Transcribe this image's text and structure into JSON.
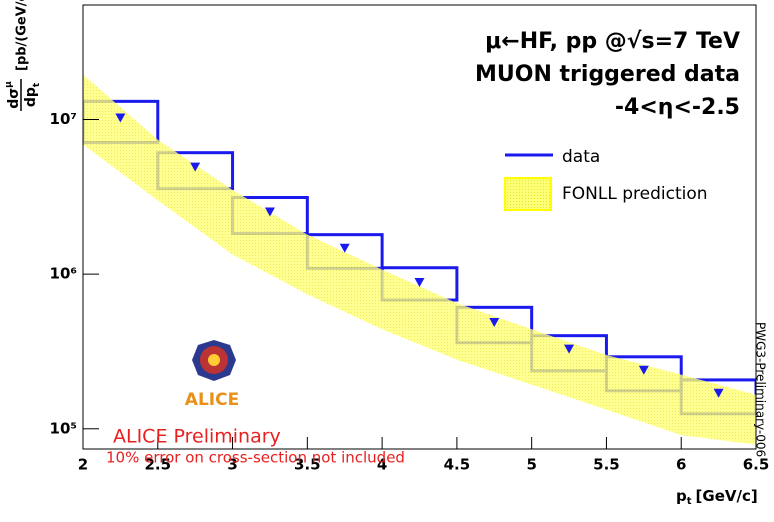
{
  "chart_data": {
    "type": "binned-log",
    "title_lines": [
      "μ←HF, pp @√s=7 TeV",
      "MUON triggered data",
      "-4<η<-2.5"
    ],
    "y_label": {
      "numerator": "dσ",
      "sup": "μ",
      "denominator": "dp",
      "sub": "t",
      "units": "[pb/(GeV/c)]"
    },
    "x_label": {
      "main": "p",
      "sub": "t",
      "units": "[GeV/c]"
    },
    "annotations": [
      "ALICE Preliminary",
      "10% error on cross-section not included"
    ],
    "logo_text": "ALICE",
    "side_note": "PWG3-Preliminary-006",
    "xlim": [
      2,
      6.5
    ],
    "xticks": [
      2,
      2.5,
      3,
      3.5,
      4,
      4.5,
      5,
      5.5,
      6,
      6.5
    ],
    "ylim": [
      74000,
      55000000
    ],
    "yticks": [
      {
        "value": 100000,
        "label": "10⁵"
      },
      {
        "value": 1000000,
        "label": "10⁶"
      },
      {
        "value": 10000000,
        "label": "10⁷"
      }
    ],
    "log_y": true,
    "legend_position": "upper-right",
    "series": [
      {
        "name": "data",
        "color": "#1a1aee",
        "bins": [
          2,
          2.5,
          3,
          3.5,
          4,
          4.5,
          5,
          5.5,
          6,
          6.5
        ],
        "values": [
          10300000,
          4960000,
          2540000,
          1480000,
          890000,
          490000,
          330000,
          241000,
          171000
        ],
        "sys_high": [
          13100000,
          6100000,
          3130000,
          1800000,
          1100000,
          610000,
          400000,
          292000,
          207000
        ],
        "sys_low": [
          7100000,
          3570000,
          1830000,
          1090000,
          680000,
          360000,
          237000,
          176000,
          125000
        ]
      },
      {
        "name": "FONLL prediction",
        "color": "#ffff55",
        "x": [
          2,
          2.5,
          3,
          3.5,
          4,
          4.5,
          5,
          5.5,
          6,
          6.5
        ],
        "upper": [
          19500000,
          7400000,
          3500000,
          1800000,
          1070000,
          650000,
          440000,
          300000,
          224000,
          166000
        ],
        "lower": [
          6900000,
          3000000,
          1340000,
          740000,
          440000,
          280000,
          193000,
          133000,
          91000,
          79000
        ]
      }
    ]
  }
}
